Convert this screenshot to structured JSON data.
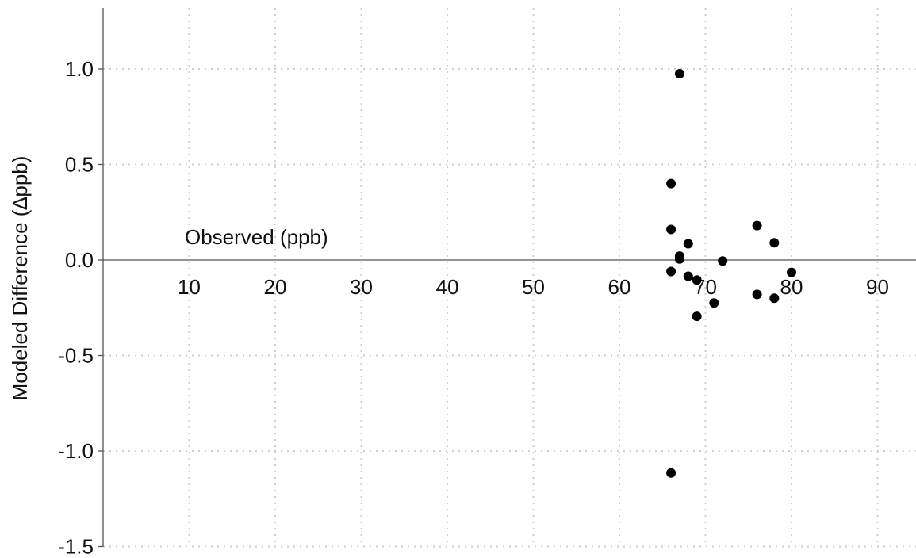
{
  "chart_data": {
    "type": "scatter",
    "title": "",
    "xlabel": "Observed (ppb)",
    "ylabel": "Modeled Difference (∆ppb)",
    "xlim": [
      0,
      94.5
    ],
    "ylim": [
      -1.5,
      1.3
    ],
    "x_ticks": [
      10,
      20,
      30,
      40,
      50,
      60,
      70,
      80,
      90
    ],
    "x_tick_labels": [
      "10",
      "20",
      "30",
      "40",
      "50",
      "60",
      "70",
      "80",
      "90"
    ],
    "y_ticks": [
      1.0,
      0.5,
      0.0,
      -0.5,
      -1.0,
      -1.5
    ],
    "y_tick_labels": [
      "1.0",
      "0.5",
      "0.0",
      "-0.5",
      "-1.0",
      "-1.5"
    ],
    "grid": true,
    "zero_line": true,
    "series": [
      {
        "marker_color": "#000000",
        "points": [
          {
            "x": 67.0,
            "y": 0.975
          },
          {
            "x": 66.0,
            "y": 0.4
          },
          {
            "x": 66.0,
            "y": 0.16
          },
          {
            "x": 68.0,
            "y": 0.085
          },
          {
            "x": 67.0,
            "y": 0.02
          },
          {
            "x": 67.0,
            "y": 0.005
          },
          {
            "x": 72.0,
            "y": -0.005
          },
          {
            "x": 66.0,
            "y": -0.06
          },
          {
            "x": 68.0,
            "y": -0.085
          },
          {
            "x": 69.0,
            "y": -0.105
          },
          {
            "x": 71.0,
            "y": -0.225
          },
          {
            "x": 69.0,
            "y": -0.295
          },
          {
            "x": 76.0,
            "y": 0.18
          },
          {
            "x": 78.0,
            "y": 0.09
          },
          {
            "x": 76.0,
            "y": -0.18
          },
          {
            "x": 78.0,
            "y": -0.2
          },
          {
            "x": 80.0,
            "y": -0.065
          },
          {
            "x": 66.0,
            "y": -1.115
          }
        ]
      }
    ]
  }
}
